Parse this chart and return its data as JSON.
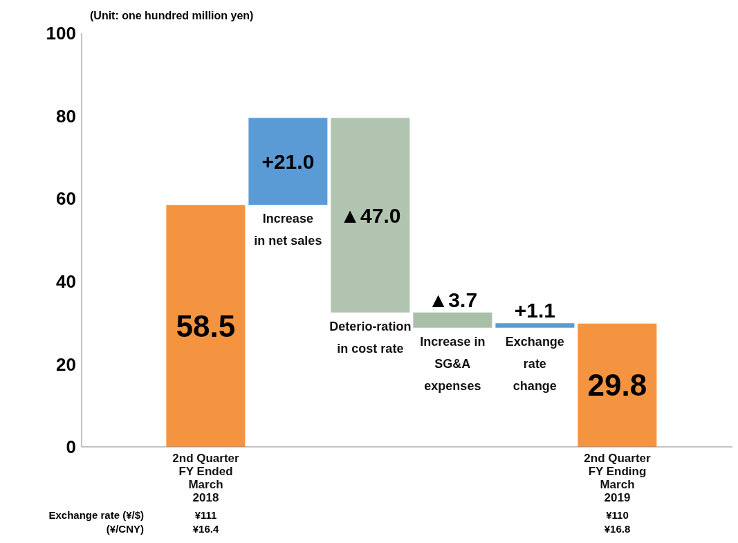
{
  "chart_data": {
    "type": "bar",
    "categories": [
      "2nd Quarter\nFY Ended\nMarch\n2018",
      null,
      null,
      null,
      null,
      "2nd Quarter\nFY Ending\nMarch\n2019"
    ],
    "values": [
      58.5,
      21.0,
      47.0,
      3.7,
      1.1,
      29.8
    ],
    "base": [
      0,
      58.5,
      32.5,
      28.8,
      28.8,
      0
    ],
    "colors": [
      "#f59440",
      "#5b9bd5",
      "#b0c4b0",
      "#a9bfa8",
      "#5b9bd5",
      "#f59440"
    ],
    "value_labels": [
      "58.5",
      "+21.0",
      "▲47.0",
      "▲3.7",
      "+1.1",
      "29.8"
    ],
    "ylim": [
      0,
      100
    ],
    "yticks": [
      0,
      20,
      40,
      60,
      80,
      100
    ],
    "grid": false,
    "annotations": [
      "(Unit: one hundred million yen)",
      "Increase\nin net sales",
      "Deterio-ration\nin cost rate",
      "Increase in\nSG&A\nexpenses",
      "Exchange\nrate\nchange",
      "Exchange rate (¥/$)",
      "¥111",
      "¥110",
      "(¥/CNY)",
      "¥16.4",
      "¥16.8"
    ]
  }
}
